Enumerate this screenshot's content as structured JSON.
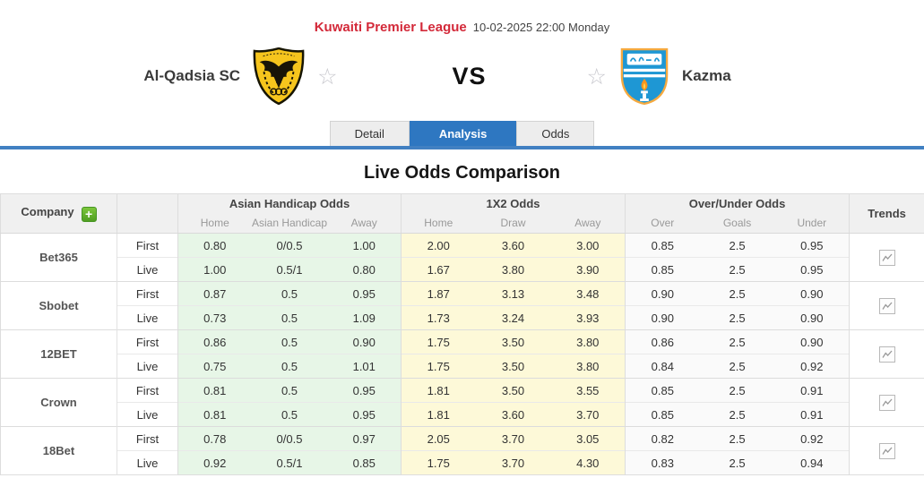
{
  "header": {
    "league": "Kuwaiti Premier League",
    "datetime": "10-02-2025 22:00 Monday",
    "home_team": "Al-Qadsia SC",
    "vs": "VS",
    "away_team": "Kazma"
  },
  "tabs": [
    {
      "label": "Detail",
      "active": false
    },
    {
      "label": "Analysis",
      "active": true
    },
    {
      "label": "Odds",
      "active": false
    }
  ],
  "section_title": "Live Odds Comparison",
  "table": {
    "company_header": "Company",
    "add_button": "+",
    "groups": [
      "Asian Handicap Odds",
      "1X2 Odds",
      "Over/Under Odds"
    ],
    "trends_header": "Trends",
    "sub": [
      "Home",
      "Asian Handicap",
      "Away",
      "Home",
      "Draw",
      "Away",
      "Over",
      "Goals",
      "Under"
    ],
    "row_labels": {
      "first": "First",
      "live": "Live"
    },
    "rows": [
      {
        "company": "Bet365",
        "first": [
          "0.80",
          "0/0.5",
          "1.00",
          "2.00",
          "3.60",
          "3.00",
          "0.85",
          "2.5",
          "0.95"
        ],
        "live": [
          "1.00",
          "0.5/1",
          "0.80",
          "1.67",
          "3.80",
          "3.90",
          "0.85",
          "2.5",
          "0.95"
        ]
      },
      {
        "company": "Sbobet",
        "first": [
          "0.87",
          "0.5",
          "0.95",
          "1.87",
          "3.13",
          "3.48",
          "0.90",
          "2.5",
          "0.90"
        ],
        "live": [
          "0.73",
          "0.5",
          "1.09",
          "1.73",
          "3.24",
          "3.93",
          "0.90",
          "2.5",
          "0.90"
        ]
      },
      {
        "company": "12BET",
        "first": [
          "0.86",
          "0.5",
          "0.90",
          "1.75",
          "3.50",
          "3.80",
          "0.86",
          "2.5",
          "0.90"
        ],
        "live": [
          "0.75",
          "0.5",
          "1.01",
          "1.75",
          "3.50",
          "3.80",
          "0.84",
          "2.5",
          "0.92"
        ]
      },
      {
        "company": "Crown",
        "first": [
          "0.81",
          "0.5",
          "0.95",
          "1.81",
          "3.50",
          "3.55",
          "0.85",
          "2.5",
          "0.91"
        ],
        "live": [
          "0.81",
          "0.5",
          "0.95",
          "1.81",
          "3.60",
          "3.70",
          "0.85",
          "2.5",
          "0.91"
        ]
      },
      {
        "company": "18Bet",
        "first": [
          "0.78",
          "0/0.5",
          "0.97",
          "2.05",
          "3.70",
          "3.05",
          "0.82",
          "2.5",
          "0.92"
        ],
        "live": [
          "0.92",
          "0.5/1",
          "0.85",
          "1.75",
          "3.70",
          "4.30",
          "0.83",
          "2.5",
          "0.94"
        ]
      }
    ]
  },
  "colors": {
    "league_red": "#d32939",
    "active_tab_blue": "#2e77c1",
    "underline_blue": "#4180c2",
    "plus_green": "#55a028",
    "asian_handicap_bg": "#e7f6e7",
    "x12_bg": "#fdf9d8",
    "home_logo_yellow": "#f6c51d",
    "away_logo_blue": "#1e97d4"
  }
}
